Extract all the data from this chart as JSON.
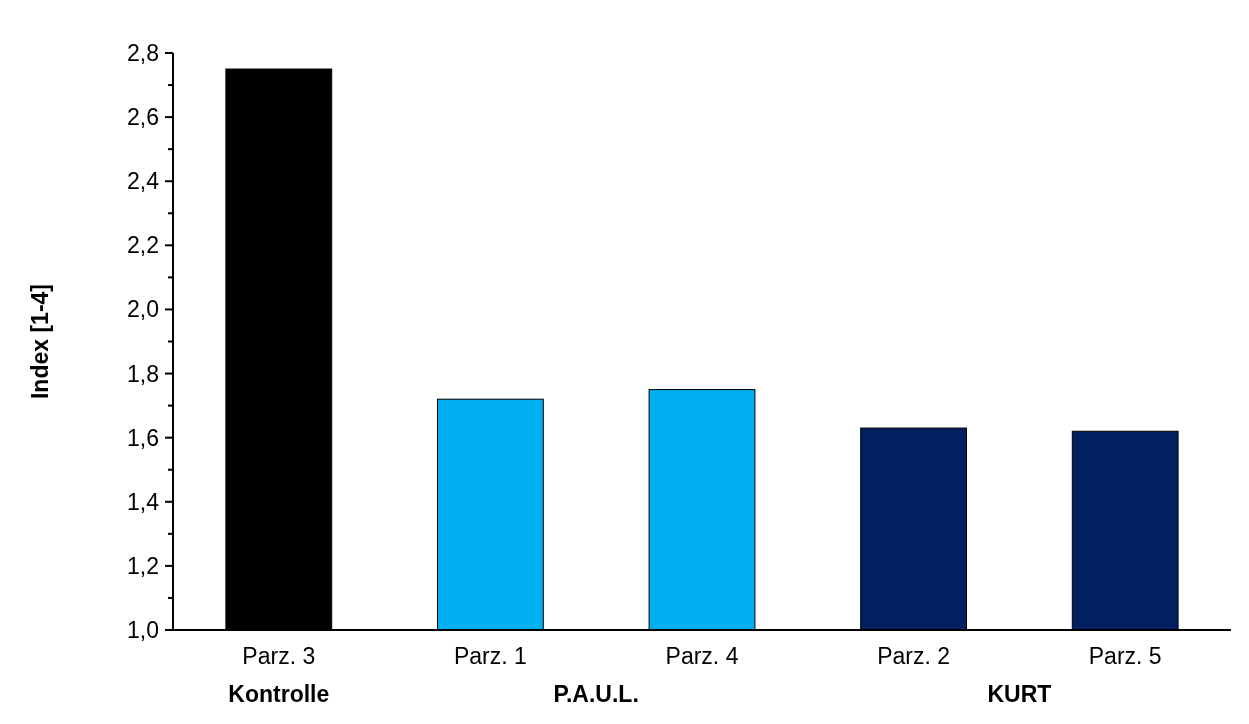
{
  "chart_data": {
    "type": "bar",
    "ylabel": "Index [1-4]",
    "categories": [
      "Parz. 3",
      "Parz. 1",
      "Parz. 4",
      "Parz. 2",
      "Parz. 5"
    ],
    "values": [
      2.75,
      1.72,
      1.75,
      1.63,
      1.62
    ],
    "colors": [
      "#000000",
      "#00b0f0",
      "#00b0f0",
      "#002060",
      "#002060"
    ],
    "ylim": [
      1.0,
      2.8
    ],
    "yticks": [
      {
        "value": 1.0,
        "label": "1,0"
      },
      {
        "value": 1.1,
        "label": null
      },
      {
        "value": 1.2,
        "label": "1,2"
      },
      {
        "value": 1.3,
        "label": null
      },
      {
        "value": 1.4,
        "label": "1,4"
      },
      {
        "value": 1.5,
        "label": null
      },
      {
        "value": 1.6,
        "label": "1,6"
      },
      {
        "value": 1.7,
        "label": null
      },
      {
        "value": 1.8,
        "label": "1,8"
      },
      {
        "value": 1.9,
        "label": null
      },
      {
        "value": 2.0,
        "label": "2,0"
      },
      {
        "value": 2.1,
        "label": null
      },
      {
        "value": 2.2,
        "label": "2,2"
      },
      {
        "value": 2.3,
        "label": null
      },
      {
        "value": 2.4,
        "label": "2,4"
      },
      {
        "value": 2.5,
        "label": null
      },
      {
        "value": 2.6,
        "label": "2,6"
      },
      {
        "value": 2.7,
        "label": null
      },
      {
        "value": 2.8,
        "label": "2,8"
      }
    ],
    "annotations": [
      "Kontrolle",
      "P.A.U.L.",
      "KURT"
    ],
    "grid": false
  }
}
